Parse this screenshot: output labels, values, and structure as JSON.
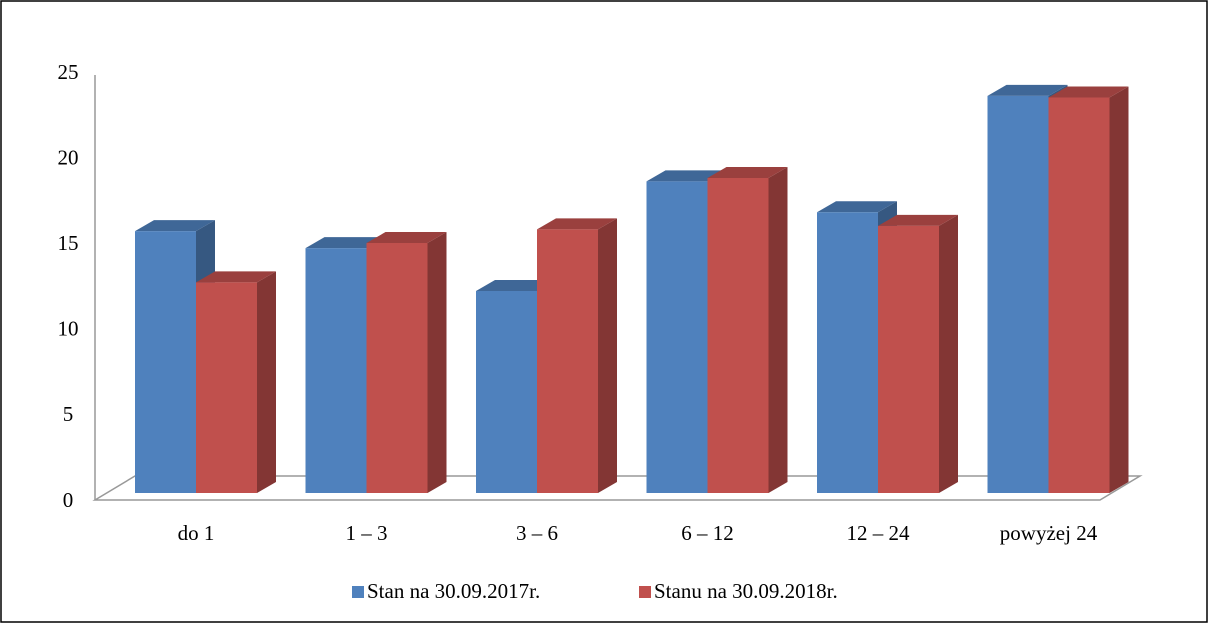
{
  "chart_data": {
    "type": "bar3d",
    "categories": [
      "do 1",
      "1 – 3",
      "3 – 6",
      "6 – 12",
      "12 – 24",
      "powyżej 24"
    ],
    "series": [
      {
        "name": "Stan na 30.09.2017r.",
        "color": "#4f81bd",
        "values": [
          15.3,
          14.3,
          11.8,
          18.2,
          16.4,
          23.2
        ]
      },
      {
        "name": "Stanu na 30.09.2018r.",
        "color": "#c0504d",
        "values": [
          12.3,
          14.6,
          15.4,
          18.4,
          15.6,
          23.1
        ]
      }
    ],
    "ylim": [
      0,
      25
    ],
    "yticks": [
      0,
      5,
      10,
      15,
      20,
      25
    ],
    "legend": "bottom"
  }
}
